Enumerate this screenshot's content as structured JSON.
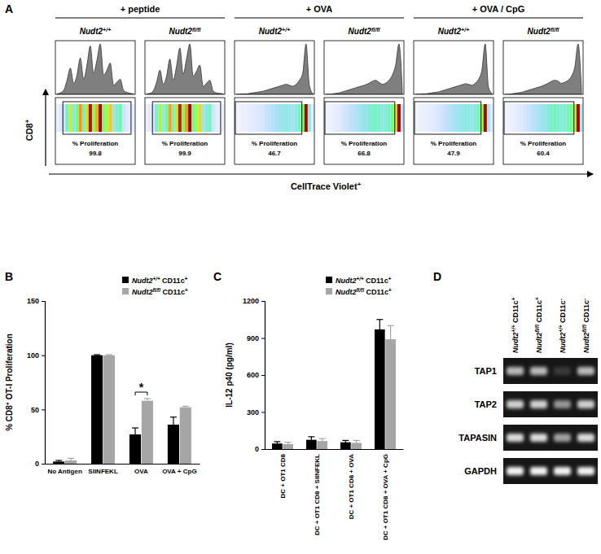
{
  "panel_labels": [
    "A",
    "B",
    "C",
    "D"
  ],
  "panel_a": {
    "y_label": "CD8+",
    "x_label": "CellTrace Violet+",
    "stat_label": "% Proliferation",
    "ylim": [
      0,
      100
    ],
    "groups": [
      {
        "title": "+ peptide",
        "panels": [
          {
            "genotype": "Nudt2+/+",
            "proliferation": 99.8,
            "gate": [
              2,
              23
            ],
            "histogram": [
              1,
              3,
              8,
              28,
              52,
              22,
              38,
              72,
              30,
              58,
              96,
              42,
              68,
              100,
              38,
              48,
              62,
              18,
              24,
              30,
              8,
              4,
              2,
              1
            ]
          },
          {
            "genotype": "Nudt2fl/fl",
            "proliferation": 99.9,
            "gate": [
              2,
              23
            ],
            "histogram": [
              1,
              2,
              7,
              24,
              48,
              20,
              36,
              70,
              28,
              56,
              92,
              40,
              70,
              100,
              36,
              46,
              58,
              16,
              22,
              28,
              7,
              3,
              2,
              1
            ]
          }
        ]
      },
      {
        "title": "+ OVA",
        "panels": [
          {
            "genotype": "Nudt2+/+",
            "proliferation": 46.7,
            "gate": [
              0,
              20.5
            ],
            "histogram": [
              0,
              0,
              1,
              1,
              2,
              3,
              4,
              5,
              6,
              8,
              10,
              12,
              14,
              16,
              18,
              20,
              18,
              16,
              20,
              28,
              42,
              100,
              18,
              2
            ]
          },
          {
            "genotype": "Nudt2fl/fl",
            "proliferation": 66.8,
            "gate": [
              0,
              21.5
            ],
            "histogram": [
              0,
              0,
              1,
              2,
              3,
              5,
              7,
              9,
              11,
              13,
              15,
              17,
              19,
              22,
              26,
              28,
              24,
              20,
              22,
              28,
              38,
              58,
              100,
              10
            ]
          }
        ]
      },
      {
        "title": "+ OVA / CpG",
        "panels": [
          {
            "genotype": "Nudt2+/+",
            "proliferation": 47.9,
            "gate": [
              0,
              20.5
            ],
            "histogram": [
              0,
              0,
              1,
              1,
              2,
              3,
              4,
              5,
              7,
              9,
              11,
              13,
              15,
              17,
              19,
              21,
              20,
              18,
              22,
              30,
              48,
              100,
              14,
              2
            ]
          },
          {
            "genotype": "Nudt2fl/fl",
            "proliferation": 60.4,
            "gate": [
              0,
              21.5
            ],
            "histogram": [
              0,
              0,
              1,
              2,
              3,
              4,
              6,
              8,
              10,
              12,
              14,
              16,
              19,
              22,
              26,
              28,
              26,
              22,
              24,
              28,
              36,
              54,
              100,
              12
            ]
          }
        ]
      }
    ]
  },
  "chart_data": [
    {
      "type": "bar",
      "ylabel": "% CD8+ OT-I Proliferation",
      "categories": [
        "No Antigen",
        "SIINFEKL",
        "OVA",
        "OVA + CpG"
      ],
      "series": [
        {
          "name": "Nudt2+/+ CD11c+",
          "color": "#000000",
          "values": [
            2,
            100,
            27,
            36
          ],
          "errors": [
            1,
            0.5,
            6,
            7
          ]
        },
        {
          "name": "Nudt2fl/fl CD11c+",
          "color": "#a6a6a6",
          "values": [
            3,
            100,
            58,
            52
          ],
          "errors": [
            2,
            0.5,
            2,
            1
          ]
        }
      ],
      "ylim": [
        0,
        150
      ],
      "yticks": [
        0,
        50,
        100,
        150
      ],
      "legend": "top right",
      "annotations": [
        {
          "text": "*",
          "x": "OVA",
          "y": 66
        }
      ]
    },
    {
      "type": "bar",
      "ylabel": "IL-12  p40 (pg/ml)",
      "categories": [
        "DC + OT1 CD8",
        "DC + OT1 CD8 + SIINFEKL",
        "DC + OT1 CD8 + OVA",
        "DC + OT1 CD8 + OVA + CpG"
      ],
      "series": [
        {
          "name": "Nudt2+/+ CD11c+",
          "color": "#000000",
          "values": [
            45,
            75,
            55,
            970
          ],
          "errors": [
            15,
            25,
            15,
            80
          ]
        },
        {
          "name": "Nudt2fl/fl CD11c+",
          "color": "#a6a6a6",
          "values": [
            40,
            65,
            50,
            890
          ],
          "errors": [
            15,
            20,
            20,
            110
          ]
        }
      ],
      "ylim": [
        0,
        1200
      ],
      "yticks": [
        0,
        300,
        600,
        900,
        1200
      ],
      "legend": "top right"
    }
  ],
  "panel_d": {
    "row_labels": [
      "TAP1",
      "TAP2",
      "TAPASIN",
      "GAPDH"
    ],
    "column_labels": [
      "Nudt2+/+ CD11c+",
      "Nudt2fl/fl CD11c+",
      "Nudt2+/+ CD11c-",
      "Nudt2fl/fl CD11c-"
    ],
    "band_intensity": [
      [
        0.7,
        0.7,
        0.15,
        0.7
      ],
      [
        0.8,
        0.8,
        0.55,
        0.8
      ],
      [
        0.85,
        0.85,
        0.6,
        0.85
      ],
      [
        0.95,
        0.95,
        0.95,
        0.95
      ]
    ]
  }
}
